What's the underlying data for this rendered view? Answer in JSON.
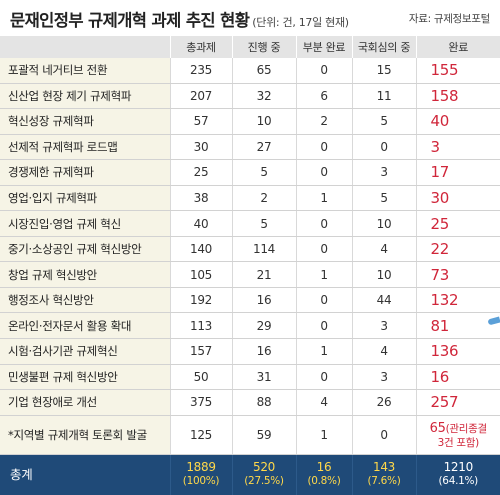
{
  "title": "문재인정부 규제개혁 과제 추진 현황",
  "unit": "(단위: 건, 17일 현재)",
  "source": "자료: 규제정보포털",
  "columns": [
    "",
    "총과제",
    "진행 중",
    "부분 완료",
    "국회심의 중",
    "완료"
  ],
  "rows": [
    {
      "name": "포괄적 네거티브 전환",
      "total": "235",
      "progress": "65",
      "partial": "0",
      "assembly": "15",
      "done": "155"
    },
    {
      "name": "신산업 현장 제기 규제혁파",
      "total": "207",
      "progress": "32",
      "partial": "6",
      "assembly": "11",
      "done": "158"
    },
    {
      "name": "혁신성장 규제혁파",
      "total": "57",
      "progress": "10",
      "partial": "2",
      "assembly": "5",
      "done": "40"
    },
    {
      "name": "선제적 규제혁파 로드맵",
      "total": "30",
      "progress": "27",
      "partial": "0",
      "assembly": "0",
      "done": "3"
    },
    {
      "name": "경쟁제한 규제혁파",
      "total": "25",
      "progress": "5",
      "partial": "0",
      "assembly": "3",
      "done": "17"
    },
    {
      "name": "영업·입지 규제혁파",
      "total": "38",
      "progress": "2",
      "partial": "1",
      "assembly": "5",
      "done": "30"
    },
    {
      "name": "시장진입·영업 규제 혁신",
      "total": "40",
      "progress": "5",
      "partial": "0",
      "assembly": "10",
      "done": "25"
    },
    {
      "name": "중기·소상공인 규제 혁신방안",
      "total": "140",
      "progress": "114",
      "partial": "0",
      "assembly": "4",
      "done": "22"
    },
    {
      "name": "창업 규제 혁신방안",
      "total": "105",
      "progress": "21",
      "partial": "1",
      "assembly": "10",
      "done": "73"
    },
    {
      "name": "행정조사 혁신방안",
      "total": "192",
      "progress": "16",
      "partial": "0",
      "assembly": "44",
      "done": "132"
    },
    {
      "name": "온라인·전자문서 활용 확대",
      "total": "113",
      "progress": "29",
      "partial": "0",
      "assembly": "3",
      "done": "81"
    },
    {
      "name": "시험·검사기관 규제혁신",
      "total": "157",
      "progress": "16",
      "partial": "1",
      "assembly": "4",
      "done": "136"
    },
    {
      "name": "민생불편 규제 혁신방안",
      "total": "50",
      "progress": "31",
      "partial": "0",
      "assembly": "3",
      "done": "16"
    },
    {
      "name": "기업 현장애로 개선",
      "total": "375",
      "progress": "88",
      "partial": "4",
      "assembly": "26",
      "done": "257"
    }
  ],
  "last_row": {
    "name": "*지역별 규제개혁 토론회 발굴",
    "total": "125",
    "progress": "59",
    "partial": "1",
    "assembly": "0",
    "done": "65",
    "done_note_1": "(관리종결",
    "done_note_2": "3건 포함)"
  },
  "totals": {
    "label": "총계",
    "total": "1889",
    "total_pct": "(100%)",
    "progress": "520",
    "progress_pct": "(27.5%)",
    "partial": "16",
    "partial_pct": "(0.8%)",
    "assembly": "143",
    "assembly_pct": "(7.6%)",
    "done": "1210",
    "done_pct": "(64.1%)"
  },
  "colors": {
    "header_bg": "#e4e4e4",
    "name_bg": "#f6f4e6",
    "done_red": "#d0263a",
    "footer_bg": "#1f4a78",
    "footer_yellow": "#ffd84a"
  }
}
